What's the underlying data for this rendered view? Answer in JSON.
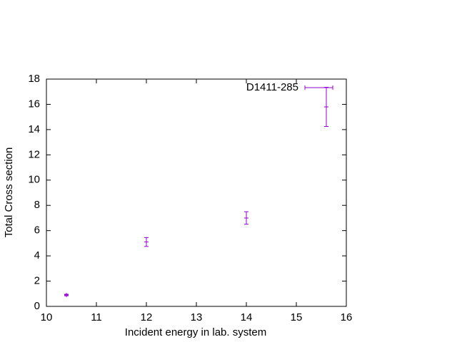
{
  "chart_data": {
    "type": "errorbar",
    "xlabel": "Incident energy in lab. system",
    "ylabel": "Total Cross section",
    "xlim": [
      10,
      16
    ],
    "ylim": [
      0,
      18
    ],
    "xticks": [
      10,
      11,
      12,
      13,
      14,
      15,
      16
    ],
    "yticks": [
      0,
      2,
      4,
      6,
      8,
      10,
      12,
      14,
      16,
      18
    ],
    "legend": "top-right",
    "series": [
      {
        "name": "D1411-285",
        "color": "#9400d3",
        "x": [
          10.4,
          12,
          14,
          15.6
        ],
        "values": [
          0.9,
          5.1,
          7.0,
          15.8
        ],
        "errors": [
          0.06,
          0.35,
          0.5,
          1.55
        ]
      }
    ]
  }
}
